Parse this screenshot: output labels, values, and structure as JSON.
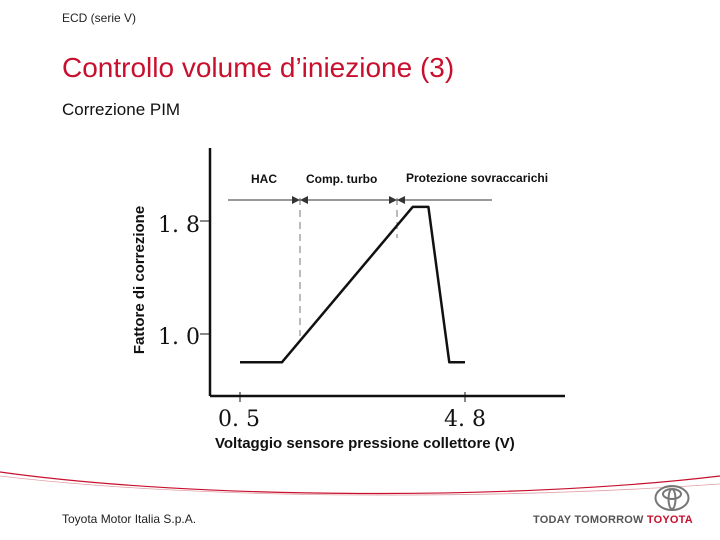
{
  "header": {
    "section": "ECD (serie V)"
  },
  "title": "Controllo volume d’iniezione (3)",
  "subtitle": "Correzione PIM",
  "chart_data": {
    "type": "line",
    "xlabel": "Voltaggio sensore pressione collettore (V)",
    "ylabel": "Fattore di correzione",
    "x_ticks": [
      "0. 5",
      "4. 8"
    ],
    "y_ticks": [
      "1. 8",
      "1. 0"
    ],
    "regions": [
      "HAC",
      "Comp. turbo",
      "Protezione sovraccarichi"
    ],
    "series": [
      {
        "x": [
          0.5,
          1.3,
          3.8,
          4.1,
          4.5,
          4.8
        ],
        "y": [
          0.8,
          0.8,
          1.9,
          1.9,
          0.8,
          0.8
        ]
      }
    ]
  },
  "footer": {
    "company": "Toyota Motor Italia S.p.A.",
    "slogan_grey": "TODAY TOMORROW",
    "slogan_red": "TOYOTA",
    "accent": "#c8102e"
  }
}
